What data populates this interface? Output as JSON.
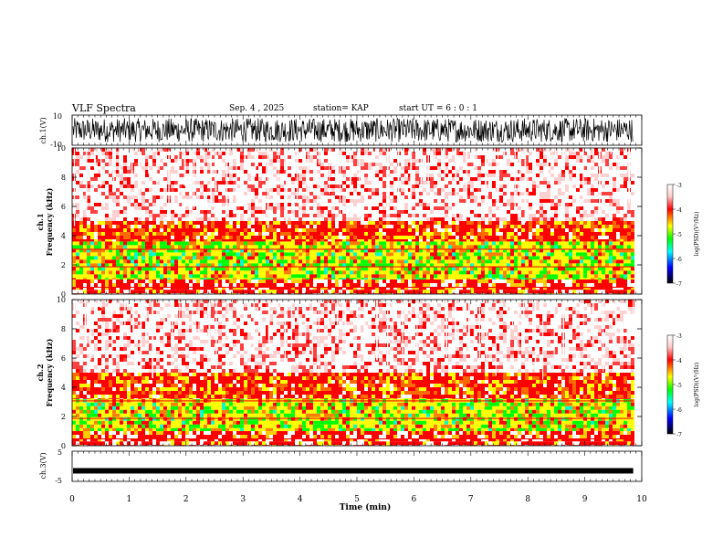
{
  "header": {
    "title": "VLF Spectra",
    "date": "Sep. 4 , 2025",
    "station": "station= KAP",
    "start_ut": "start UT =  6 : 0  : 1"
  },
  "chart_data": [
    {
      "type": "line",
      "panel": "ch1-waveform",
      "ylabel": "ch.1(V)",
      "ylim": [
        -10,
        10
      ],
      "y_ticks": [
        "10",
        "-10"
      ],
      "xlim": [
        0,
        10
      ],
      "data_end_min": 9.85,
      "signal": "dense noise-like waveform spanning roughly -8 to +8 V",
      "color": "#000000"
    },
    {
      "type": "heatmap",
      "panel": "ch1-spectrogram",
      "ylabel": "ch.1\nFrequency  (kHz)",
      "ylim": [
        0,
        10
      ],
      "y_ticks": [
        "0",
        "2",
        "4",
        "6",
        "8",
        "10"
      ],
      "xlim": [
        0,
        10
      ],
      "data_end_min": 9.85,
      "bands_khz": [
        {
          "from": 0.0,
          "to": 0.3,
          "level": "high"
        },
        {
          "from": 0.3,
          "to": 1.0,
          "level": "strong"
        },
        {
          "from": 1.0,
          "to": 3.6,
          "level": "very-high"
        },
        {
          "from": 3.6,
          "to": 5.0,
          "level": "medium"
        },
        {
          "from": 5.0,
          "to": 10.0,
          "level": "low"
        }
      ]
    },
    {
      "type": "heatmap",
      "panel": "ch2-spectrogram",
      "ylabel": "ch.2\nFrequency  (kHz)",
      "ylim": [
        0,
        10
      ],
      "y_ticks": [
        "0",
        "2",
        "4",
        "6",
        "8",
        "10"
      ],
      "xlim": [
        0,
        10
      ],
      "data_end_min": 9.85,
      "bands_khz": [
        {
          "from": 0.0,
          "to": 0.3,
          "level": "high"
        },
        {
          "from": 0.3,
          "to": 1.0,
          "level": "strong"
        },
        {
          "from": 1.0,
          "to": 3.2,
          "level": "very-high"
        },
        {
          "from": 3.2,
          "to": 5.0,
          "level": "medium"
        },
        {
          "from": 5.0,
          "to": 10.0,
          "level": "low"
        }
      ]
    },
    {
      "type": "line",
      "panel": "ch3-waveform",
      "ylabel": "ch.3(V)",
      "ylim": [
        -5,
        5
      ],
      "y_ticks": [
        "5",
        "-5"
      ],
      "xlim": [
        0,
        10
      ],
      "data_end_min": 9.85,
      "signal": "flat thick band near -1.5 V",
      "center_v": -1.5,
      "xlabel": "Time  (min)",
      "x_ticks": [
        "0",
        "1",
        "2",
        "3",
        "4",
        "5",
        "6",
        "7",
        "8",
        "9",
        "10"
      ]
    }
  ],
  "colorbar": {
    "label": "log(PSD)(V²/Hz)",
    "range": [
      -7,
      -3
    ],
    "tick_labels": [
      "-3",
      "-4",
      "-5",
      "-6",
      "-7"
    ],
    "colors": [
      "#ffffff",
      "#ff0000",
      "#ffff00",
      "#00ff00",
      "#00ffff",
      "#0000ff",
      "#000000"
    ]
  }
}
